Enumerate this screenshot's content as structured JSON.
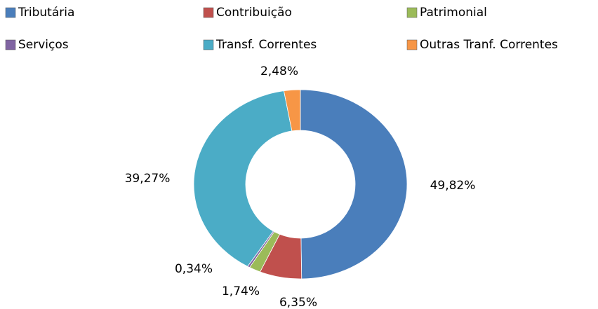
{
  "chart_data": {
    "type": "donut",
    "categories": [
      "Tributária",
      "Contribuição",
      "Patrimonial",
      "Serviços",
      "Transf. Correntes",
      "Outras Tranf. Correntes"
    ],
    "values": [
      49.82,
      6.35,
      1.74,
      0.34,
      39.27,
      2.48
    ],
    "value_labels": [
      "49,82%",
      "6,35%",
      "1,74%",
      "0,34%",
      "39,27%",
      "2,48%"
    ],
    "colors": [
      "#4a7ebb",
      "#c0504d",
      "#9bbb59",
      "#8064a2",
      "#4bacc6",
      "#f79646"
    ],
    "legend": "top"
  }
}
